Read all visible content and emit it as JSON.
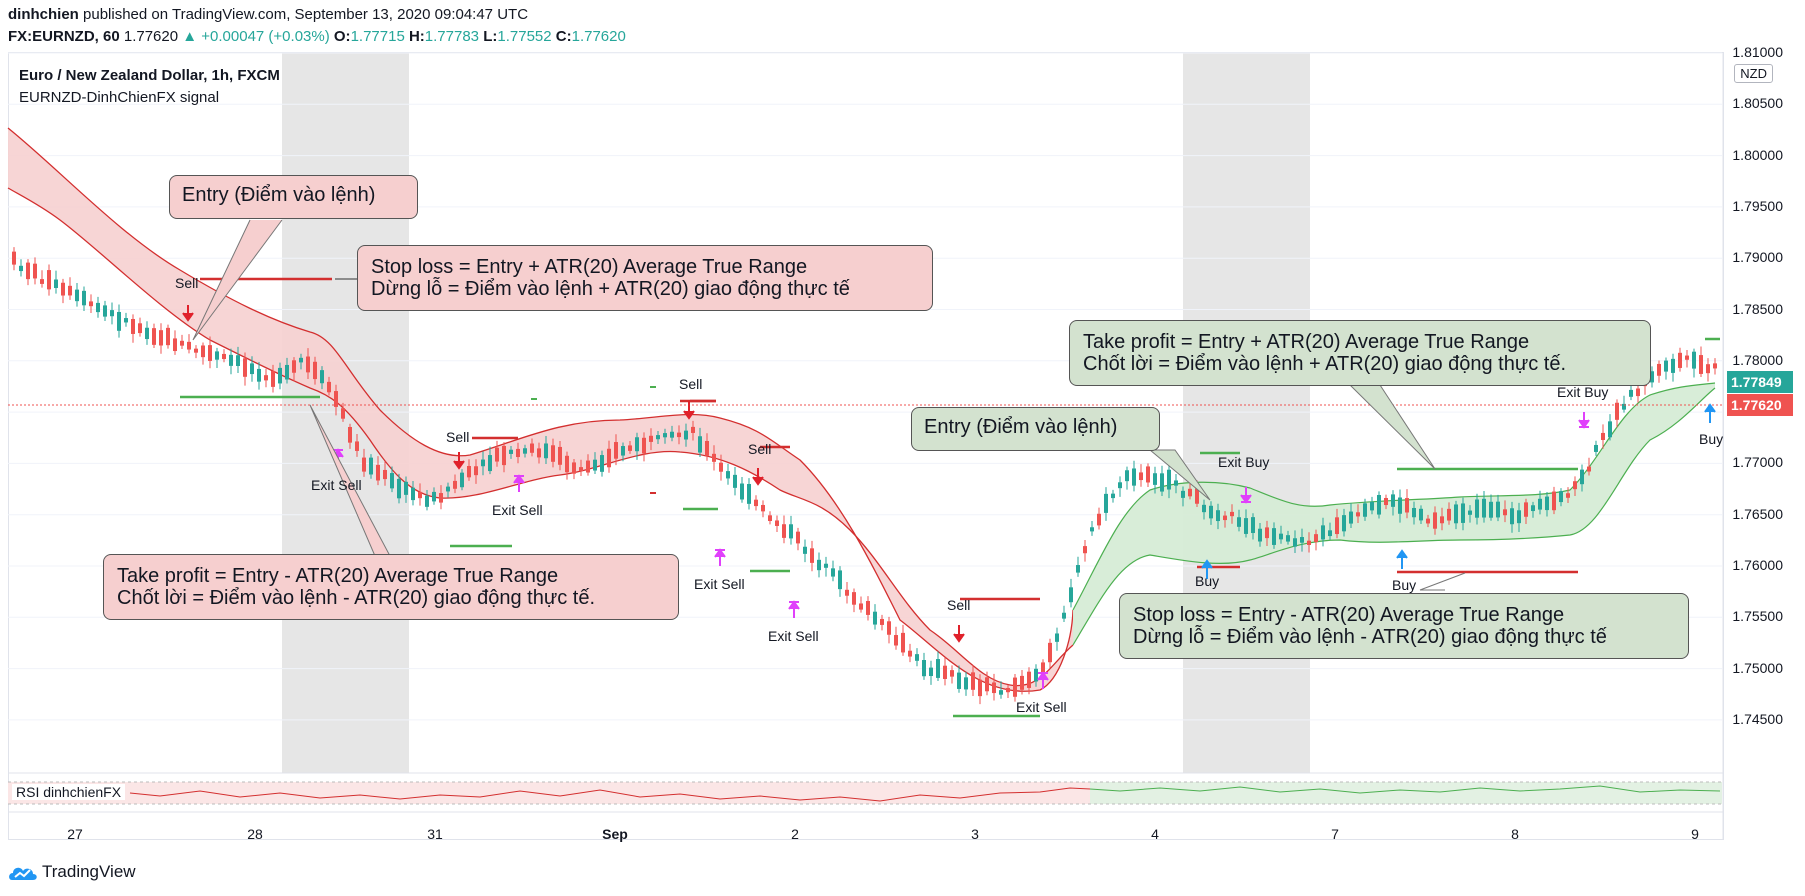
{
  "header": {
    "author": "dinhchien",
    "published": "published on TradingView.com, September 13, 2020 09:04:47 UTC",
    "symbol": "FX:EURNZD, 60",
    "last": "1.77620",
    "change": "▲ +0.00047 (+0.03%)",
    "o_label": "O:",
    "o_val": "1.77715",
    "h_label": "H:",
    "h_val": "1.77783",
    "l_label": "L:",
    "l_val": "1.77552",
    "c_label": "C:",
    "c_val": "1.77620"
  },
  "legend": {
    "title": "Euro / New Zealand Dollar, 1h, FXCM",
    "indicator": "EURNZD-DinhChienFX signal"
  },
  "price_axis": {
    "currency": "NZD",
    "ticks": [
      "1.81000",
      "1.80500",
      "1.80000",
      "1.79500",
      "1.79000",
      "1.78500",
      "1.78000",
      "1.77500",
      "1.77000",
      "1.76500",
      "1.76000",
      "1.75500",
      "1.75000",
      "1.74500"
    ],
    "tag_green": "1.77849",
    "tag_red": "1.77620"
  },
  "time_axis": [
    "27",
    "28",
    "31",
    "Sep",
    "2",
    "3",
    "4",
    "7",
    "8",
    "9"
  ],
  "rsi_label": "RSI dinhchienFX",
  "signals": {
    "sell": "Sell",
    "buy": "Buy",
    "exit_sell": "Exit Sell",
    "exit_buy": "Exit Buy"
  },
  "callouts": {
    "entry_sell": "Entry (Điểm vào lệnh)",
    "sl_sell_1": "Stop loss = Entry + ATR(20) Average True Range",
    "sl_sell_2": "Dừng lỗ = Điểm vào lệnh + ATR(20) giao động thực tế",
    "tp_sell_1": "Take profit = Entry - ATR(20) Average True Range",
    "tp_sell_2": "Chốt lời = Điểm vào lệnh - ATR(20) giao động thực tế.",
    "entry_buy": "Entry (Điểm vào lệnh)",
    "tp_buy_1": "Take profit = Entry + ATR(20) Average True Range",
    "tp_buy_2": "Chốt lời = Điểm vào lệnh + ATR(20) giao động thực tế.",
    "sl_buy_1": "Stop loss = Entry - ATR(20) Average True Range",
    "sl_buy_2": "Dừng lỗ = Điểm vào lệnh - ATR(20) giao động thực tế"
  },
  "brand": "TradingView",
  "colors": {
    "up": "#26a69a",
    "down": "#ef5350",
    "sell_band": "#f6d0d0",
    "buy_band": "#d6ecd6",
    "red_line": "#d32f2f",
    "green_line": "#4caf50",
    "magenta": "#e040fb",
    "blue": "#2196f3"
  }
}
